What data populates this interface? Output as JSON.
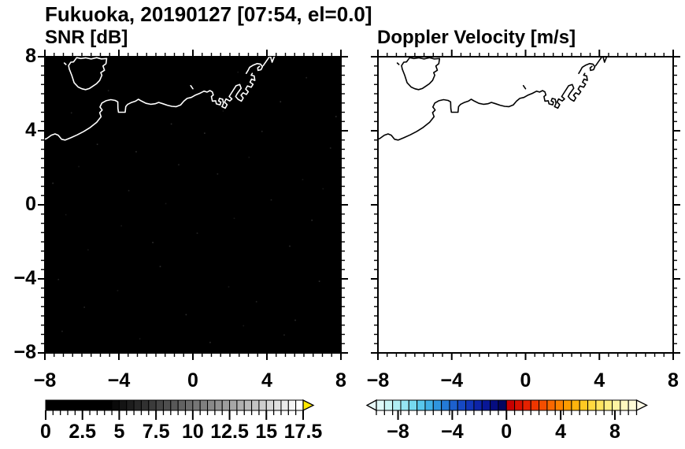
{
  "title": {
    "text": "Fukuoka, 20190127 [07:54, el=0.0]"
  },
  "panels": {
    "snr": {
      "subtitle": "SNR [dB]",
      "bg": "#000000",
      "coast": "#ffffff"
    },
    "vel": {
      "subtitle": "Doppler Velocity [m/s]",
      "bg": "#ffffff",
      "coast": "#000000"
    }
  },
  "axes": {
    "range": [
      -8,
      8
    ],
    "major": [
      -8,
      -4,
      0,
      4,
      8
    ],
    "minor_step": 0.5,
    "x_tick_labels": [
      "−8",
      "−4",
      "0",
      "4",
      "8"
    ],
    "y_tick_labels": [
      "8",
      "4",
      "0",
      "−4",
      "−8"
    ],
    "y_tick_values": [
      8,
      4,
      0,
      -4,
      -8
    ]
  },
  "colorbars": {
    "snr": {
      "min": 0,
      "max": 17.5,
      "cell_step": 0.5,
      "tick_values": [
        0,
        2.5,
        5,
        7.5,
        10,
        12.5,
        15,
        17.5
      ],
      "tick_labels": [
        "0",
        "2.5",
        "5",
        "7.5",
        "10",
        "12.5",
        "15",
        "17.5"
      ],
      "right_arrow": "#ffe800",
      "cells": [
        "#000000",
        "#000000",
        "#000000",
        "#000000",
        "#000000",
        "#000000",
        "#000000",
        "#000000",
        "#000000",
        "#0a0a0a",
        "#141414",
        "#1d1d1d",
        "#272727",
        "#313131",
        "#3b3b3b",
        "#454545",
        "#4e4e4e",
        "#585858",
        "#626262",
        "#6c6c6c",
        "#767676",
        "#7f7f7f",
        "#898989",
        "#939393",
        "#9d9d9d",
        "#a7a7a7",
        "#b0b0b0",
        "#bababa",
        "#c4c4c4",
        "#cecece",
        "#d8d8d8",
        "#e1e1e1",
        "#ebebeb",
        "#f5f5f5",
        "#ffffff"
      ]
    },
    "vel": {
      "min": -9.6,
      "max": 9.6,
      "cell_step": 0.6,
      "tick_values": [
        -8,
        -4,
        0,
        4,
        8
      ],
      "tick_labels": [
        "−8",
        "−4",
        "0",
        "4",
        "8"
      ],
      "left_arrow": "#e9fbfb",
      "right_arrow": "#fffce8",
      "cells": [
        "#dffafa",
        "#c9f5f6",
        "#b0eef4",
        "#95e5f2",
        "#76d9ef",
        "#59c7ec",
        "#41b0e6",
        "#2f95de",
        "#247ad6",
        "#1c60cd",
        "#1649c3",
        "#1135b7",
        "#0d24a9",
        "#091797",
        "#060d80",
        "#040660",
        "#c80000",
        "#d81000",
        "#e52100",
        "#ef3600",
        "#f54e00",
        "#f96800",
        "#fb8200",
        "#fd9c00",
        "#feb40d",
        "#fec922",
        "#ffd940",
        "#ffe560",
        "#ffee82",
        "#fff4a2",
        "#fff8be",
        "#fffbd6"
      ]
    }
  },
  "map": {
    "coast": [
      [
        -8.15,
        3.5
      ],
      [
        -7.9,
        3.58
      ],
      [
        -7.65,
        3.76
      ],
      [
        -7.45,
        3.83
      ],
      [
        -7.28,
        3.76
      ],
      [
        -7.1,
        3.54
      ],
      [
        -6.9,
        3.5
      ],
      [
        -6.6,
        3.62
      ],
      [
        -6.25,
        3.78
      ],
      [
        -5.9,
        3.96
      ],
      [
        -5.55,
        4.18
      ],
      [
        -5.2,
        4.46
      ],
      [
        -4.96,
        4.76
      ],
      [
        -5.04,
        4.98
      ],
      [
        -4.9,
        5.12
      ],
      [
        -5.02,
        5.28
      ],
      [
        -4.92,
        5.5
      ],
      [
        -4.7,
        5.62
      ],
      [
        -4.44,
        5.68
      ],
      [
        -4.2,
        5.64
      ],
      [
        -4.06,
        5.56
      ],
      [
        -4.05,
        5.2
      ],
      [
        -4.02,
        5.0
      ],
      [
        -3.66,
        5.0
      ],
      [
        -3.63,
        5.3
      ],
      [
        -3.53,
        5.42
      ],
      [
        -3.34,
        5.52
      ],
      [
        -3.1,
        5.6
      ],
      [
        -2.95,
        5.7
      ],
      [
        -2.77,
        5.6
      ],
      [
        -2.53,
        5.48
      ],
      [
        -2.28,
        5.43
      ],
      [
        -2.04,
        5.46
      ],
      [
        -1.85,
        5.53
      ],
      [
        -1.62,
        5.46
      ],
      [
        -1.38,
        5.38
      ],
      [
        -1.13,
        5.32
      ],
      [
        -0.9,
        5.3
      ],
      [
        -0.67,
        5.39
      ],
      [
        -0.49,
        5.6
      ],
      [
        -0.31,
        5.75
      ],
      [
        -0.09,
        5.8
      ],
      [
        0.12,
        5.92
      ],
      [
        0.37,
        6.02
      ],
      [
        0.6,
        6.14
      ],
      [
        0.76,
        6.09
      ],
      [
        0.92,
        6.17
      ],
      [
        1.05,
        6.1
      ],
      [
        1.1,
        5.93
      ],
      [
        1.0,
        5.85
      ],
      [
        1.05,
        5.6
      ],
      [
        1.23,
        5.62
      ],
      [
        1.27,
        5.45
      ],
      [
        1.47,
        5.4
      ],
      [
        1.51,
        5.55
      ],
      [
        1.39,
        5.61
      ],
      [
        1.44,
        5.75
      ],
      [
        1.61,
        5.7
      ],
      [
        1.65,
        5.48
      ],
      [
        1.57,
        5.3
      ],
      [
        1.75,
        5.22
      ],
      [
        1.85,
        5.41
      ],
      [
        1.71,
        5.55
      ],
      [
        1.79,
        5.72
      ],
      [
        1.99,
        5.61
      ],
      [
        2.11,
        5.72
      ],
      [
        1.96,
        5.85
      ],
      [
        2.33,
        6.43
      ],
      [
        2.53,
        6.5
      ],
      [
        2.61,
        6.3
      ],
      [
        2.39,
        6.0
      ],
      [
        2.31,
        5.85
      ],
      [
        2.44,
        5.7
      ],
      [
        2.62,
        5.6
      ],
      [
        2.72,
        5.77
      ],
      [
        2.6,
        5.92
      ],
      [
        2.72,
        6.05
      ],
      [
        2.89,
        5.96
      ],
      [
        2.99,
        6.11
      ],
      [
        2.85,
        6.25
      ],
      [
        2.95,
        6.42
      ],
      [
        3.15,
        6.35
      ],
      [
        3.25,
        6.51
      ],
      [
        3.09,
        6.62
      ],
      [
        3.17,
        6.79
      ],
      [
        3.35,
        6.72
      ],
      [
        3.31,
        6.96
      ],
      [
        3.15,
        7.0
      ],
      [
        3.21,
        7.1
      ]
    ],
    "island": [
      [
        -6.28,
        7.95
      ],
      [
        -6.45,
        7.72
      ],
      [
        -6.6,
        7.7
      ],
      [
        -6.72,
        7.52
      ],
      [
        -6.68,
        7.33
      ],
      [
        -6.55,
        7.0
      ],
      [
        -6.42,
        6.6
      ],
      [
        -6.2,
        6.36
      ],
      [
        -6.0,
        6.27
      ],
      [
        -5.8,
        6.22
      ],
      [
        -5.6,
        6.28
      ],
      [
        -5.36,
        6.44
      ],
      [
        -5.2,
        6.55
      ],
      [
        -5.04,
        6.72
      ],
      [
        -4.92,
        7.0
      ],
      [
        -4.98,
        7.14
      ],
      [
        -4.78,
        7.27
      ],
      [
        -4.86,
        7.5
      ],
      [
        -4.7,
        7.62
      ],
      [
        -4.66,
        7.9
      ],
      [
        -4.95,
        7.88
      ],
      [
        -5.2,
        7.95
      ],
      [
        -5.5,
        7.88
      ],
      [
        -5.8,
        7.94
      ],
      [
        -6.05,
        7.9
      ],
      [
        -6.28,
        7.95
      ]
    ],
    "breakwater": [
      [
        2.88,
        7.1
      ],
      [
        2.99,
        7.28
      ],
      [
        3.07,
        7.43
      ],
      [
        3.27,
        7.55
      ],
      [
        3.47,
        7.63
      ],
      [
        3.65,
        7.6
      ],
      [
        3.76,
        7.46
      ],
      [
        3.68,
        7.3
      ],
      [
        3.52,
        7.26
      ],
      [
        3.5,
        7.4
      ],
      [
        3.6,
        7.48
      ]
    ],
    "jetty": [
      [
        3.8,
        7.52
      ],
      [
        4.18,
        8.06
      ],
      [
        4.28,
        7.7
      ],
      [
        4.42,
        8.06
      ]
    ],
    "islets": [
      [
        [
          -6.95,
          7.66
        ],
        [
          -6.86,
          7.58
        ]
      ],
      [
        [
          -0.12,
          6.44
        ],
        [
          0.0,
          6.27
        ]
      ]
    ],
    "speckles": [
      [
        -6.2,
        2.1
      ],
      [
        3.4,
        -5.2
      ],
      [
        -1.8,
        -3.3
      ],
      [
        5.9,
        1.4
      ],
      [
        -7.1,
        -6.8
      ],
      [
        0.6,
        3.9
      ],
      [
        2.2,
        -0.7
      ],
      [
        -3.5,
        0.8
      ],
      [
        6.8,
        -4.1
      ],
      [
        -5.7,
        -2.4
      ],
      [
        1.3,
        1.7
      ],
      [
        4.7,
        5.6
      ],
      [
        -2.9,
        -7.2
      ],
      [
        7.4,
        3.1
      ],
      [
        -0.4,
        -5.9
      ],
      [
        3.0,
        2.6
      ],
      [
        -6.6,
        5.0
      ],
      [
        5.2,
        -2.2
      ],
      [
        -4.1,
        -4.6
      ],
      [
        0.2,
        -1.5
      ],
      [
        -7.6,
        1.2
      ],
      [
        2.7,
        -6.5
      ],
      [
        6.1,
        6.9
      ],
      [
        -1.2,
        4.4
      ],
      [
        -3.9,
        -1.1
      ],
      [
        4.2,
        0.3
      ],
      [
        -5.2,
        3.3
      ],
      [
        1.9,
        -4.4
      ],
      [
        -0.8,
        2.2
      ],
      [
        5.5,
        -6.2
      ],
      [
        -6.9,
        -0.5
      ],
      [
        3.7,
        4.0
      ],
      [
        -2.2,
        -2.0
      ],
      [
        7.0,
        0.9
      ],
      [
        -4.6,
        6.2
      ],
      [
        0.9,
        -7.4
      ],
      [
        2.4,
        7.2
      ],
      [
        -7.3,
        -4.0
      ],
      [
        6.4,
        -0.8
      ],
      [
        -1.5,
        0.1
      ],
      [
        4.9,
        -7.0
      ],
      [
        -3.1,
        2.9
      ],
      [
        1.6,
        5.1
      ],
      [
        -5.9,
        -5.5
      ],
      [
        7.7,
        4.8
      ]
    ],
    "speckle_grays": [
      "#181818",
      "#242424",
      "#2e2e2e"
    ]
  },
  "chart_data": {
    "type": "heatmap",
    "figure_title": "Fukuoka, 20190127 [07:54, el=0.0]",
    "panels": [
      {
        "title": "SNR [dB]",
        "x_range": [
          -8,
          8
        ],
        "y_range": [
          -8,
          8
        ],
        "x_ticks": [
          -8,
          -4,
          0,
          4,
          8
        ],
        "y_ticks": [
          8,
          4,
          0,
          -4,
          -8
        ],
        "data": "no echo — entire field at/below 0 dB (rendered black) with sparse faint noise speckles",
        "colorbar": {
          "min": 0,
          "max": 17.5,
          "tick_step": 2.5,
          "colormap": "black-to-white grayscale, yellow over-range arrow"
        }
      },
      {
        "title": "Doppler Velocity [m/s]",
        "x_range": [
          -8,
          8
        ],
        "y_range": [
          -8,
          8
        ],
        "x_ticks": [
          -8,
          -4,
          0,
          4,
          8
        ],
        "y_ticks": [
          8,
          4,
          0,
          -4,
          -8
        ],
        "data": "no data — entire field blank (white)",
        "colorbar": {
          "min": -9.6,
          "max": 9.6,
          "ticks": [
            -8,
            -4,
            0,
            4,
            8
          ],
          "colormap": "diverging: pale cyan→blue→dark navy (negative), red→orange→pale yellow (positive), under/over arrows"
        }
      }
    ],
    "overlay": "Hakata Bay coastline (Fukuoka) with Nokonoshima island and Hakata port pier structures; radar origin at (0,0), axes in km"
  }
}
